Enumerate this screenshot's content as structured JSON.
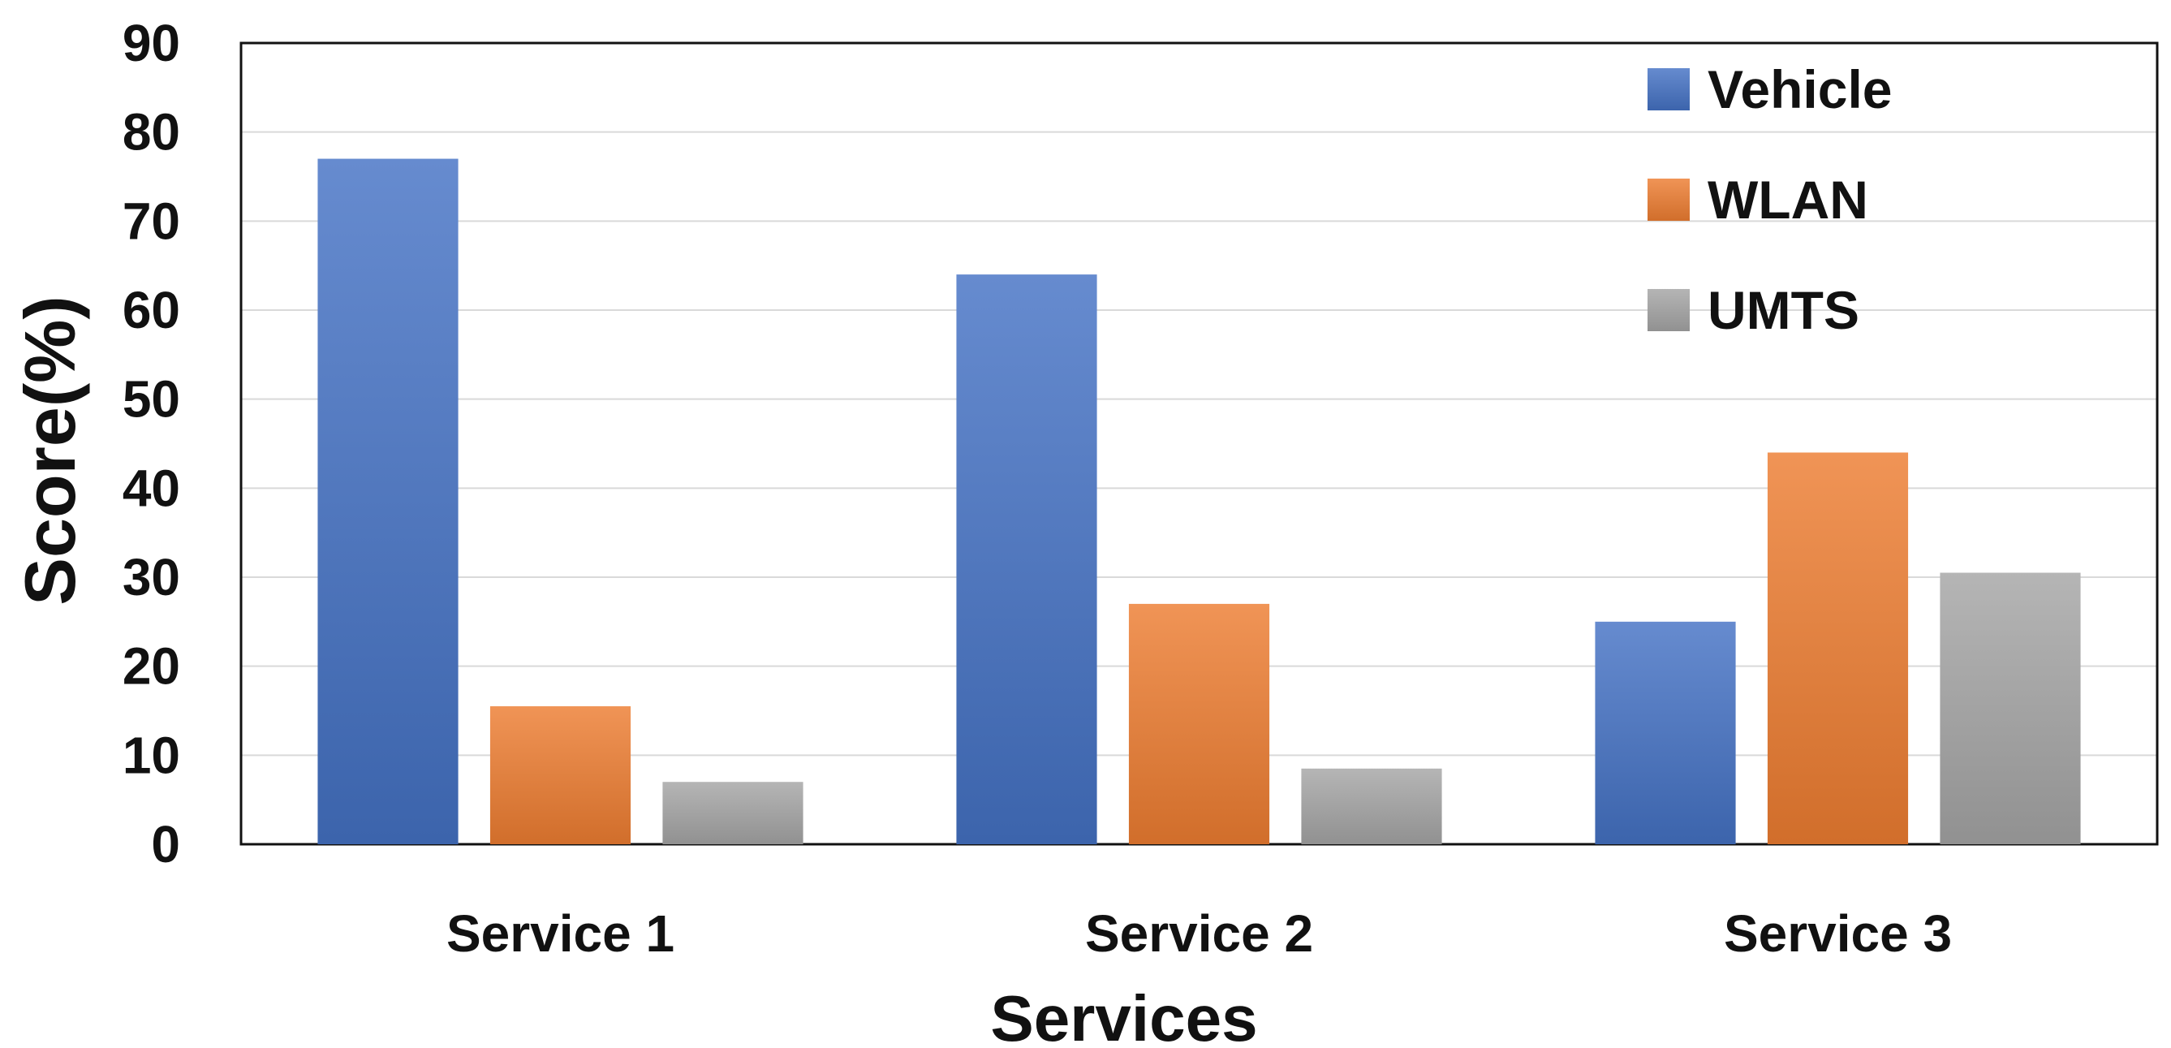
{
  "chart_data": {
    "type": "bar",
    "title": "",
    "xlabel": "Services",
    "ylabel": "Score(%)",
    "categories": [
      "Service 1",
      "Service 2",
      "Service 3"
    ],
    "ylim": [
      0,
      90
    ],
    "yticks": [
      0,
      10,
      20,
      30,
      40,
      50,
      60,
      70,
      80,
      90
    ],
    "grid": true,
    "legend_position": "top-right",
    "series": [
      {
        "name": "Vehicle",
        "color": "#4472C4",
        "values": [
          77,
          64,
          25
        ]
      },
      {
        "name": "WLAN",
        "color": "#ED7D31",
        "values": [
          15.5,
          27,
          44
        ]
      },
      {
        "name": "UMTS",
        "color": "#A5A5A5",
        "values": [
          7,
          8.5,
          30.5
        ]
      }
    ]
  }
}
